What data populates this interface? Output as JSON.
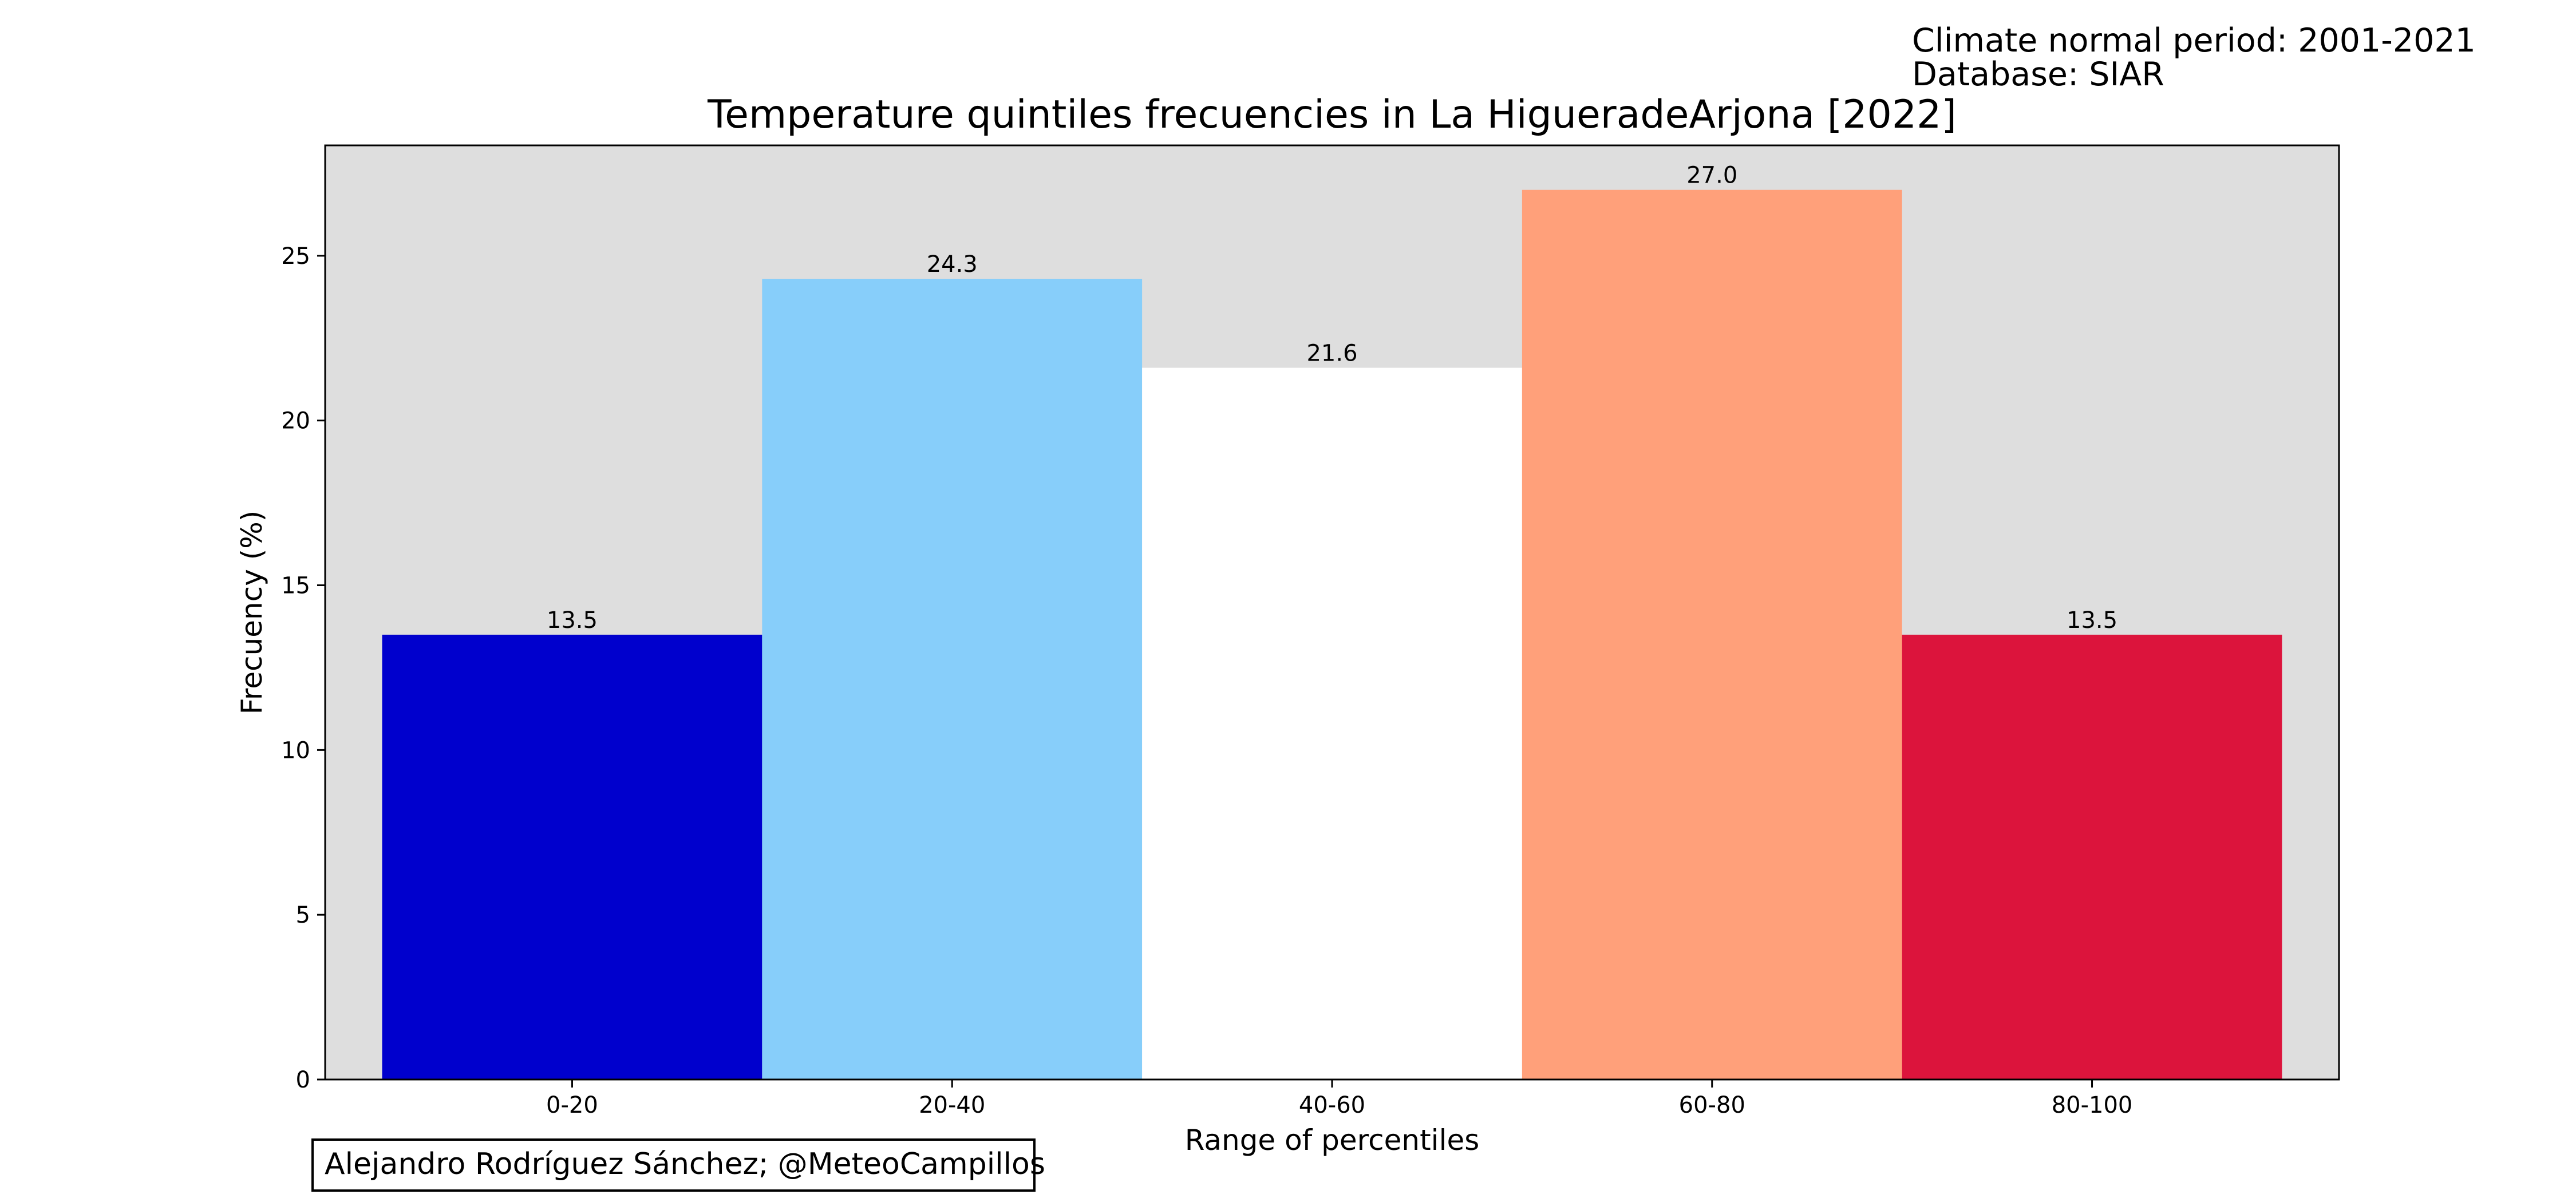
{
  "header": {
    "note_line1": "Climate normal period: 2001-2021",
    "note_line2": "Database: SIAR"
  },
  "credit": "Alejandro Rodríguez Sánchez; @MeteoCampillos",
  "colors": {
    "plot_background": "#dedede",
    "bars": [
      "#0000cd",
      "#87cefa",
      "#ffffff",
      "#ffa07a",
      "#dc143c"
    ]
  },
  "chart_data": {
    "type": "bar",
    "title": "Temperature quintiles frecuencies in La HigueradeArjona [2022]",
    "xlabel": "Range of percentiles",
    "ylabel": "Frecuency (%)",
    "categories": [
      "0-20",
      "20-40",
      "40-60",
      "60-80",
      "80-100"
    ],
    "values": [
      13.5,
      24.3,
      21.6,
      27.0,
      13.5
    ],
    "data_labels": [
      "13.5",
      "24.3",
      "21.6",
      "27.0",
      "13.5"
    ],
    "yticks": [
      0,
      5,
      10,
      15,
      20,
      25
    ],
    "ylim": [
      0,
      28.35
    ],
    "grid": false,
    "legend": "none"
  }
}
